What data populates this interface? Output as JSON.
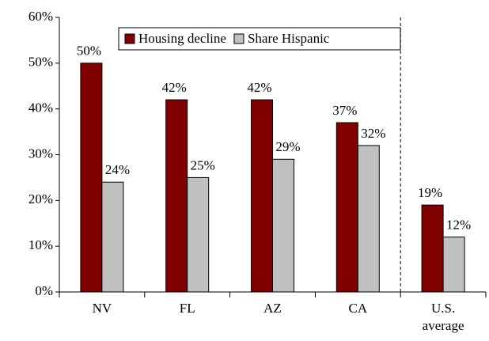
{
  "chart_data": {
    "type": "bar",
    "categories": [
      "NV",
      "FL",
      "AZ",
      "CA",
      "U.S. average"
    ],
    "series": [
      {
        "name": "Housing decline",
        "color": "#800000",
        "values": [
          50,
          42,
          42,
          37,
          19
        ],
        "value_labels": [
          "50%",
          "42%",
          "42%",
          "37%",
          "19%"
        ]
      },
      {
        "name": "Share Hispanic",
        "color": "#c0c0c0",
        "values": [
          24,
          25,
          29,
          32,
          12
        ],
        "value_labels": [
          "24%",
          "25%",
          "29%",
          "32%",
          "12%"
        ]
      }
    ],
    "ylim": [
      0,
      60
    ],
    "yticks": [
      {
        "value": 0,
        "label": "0%"
      },
      {
        "value": 10,
        "label": "10%"
      },
      {
        "value": 20,
        "label": "20%"
      },
      {
        "value": 30,
        "label": "30%"
      },
      {
        "value": 40,
        "label": "40%"
      },
      {
        "value": 50,
        "label": "50%"
      },
      {
        "value": 60,
        "label": "60%"
      }
    ],
    "grid": false,
    "legend": "top"
  }
}
